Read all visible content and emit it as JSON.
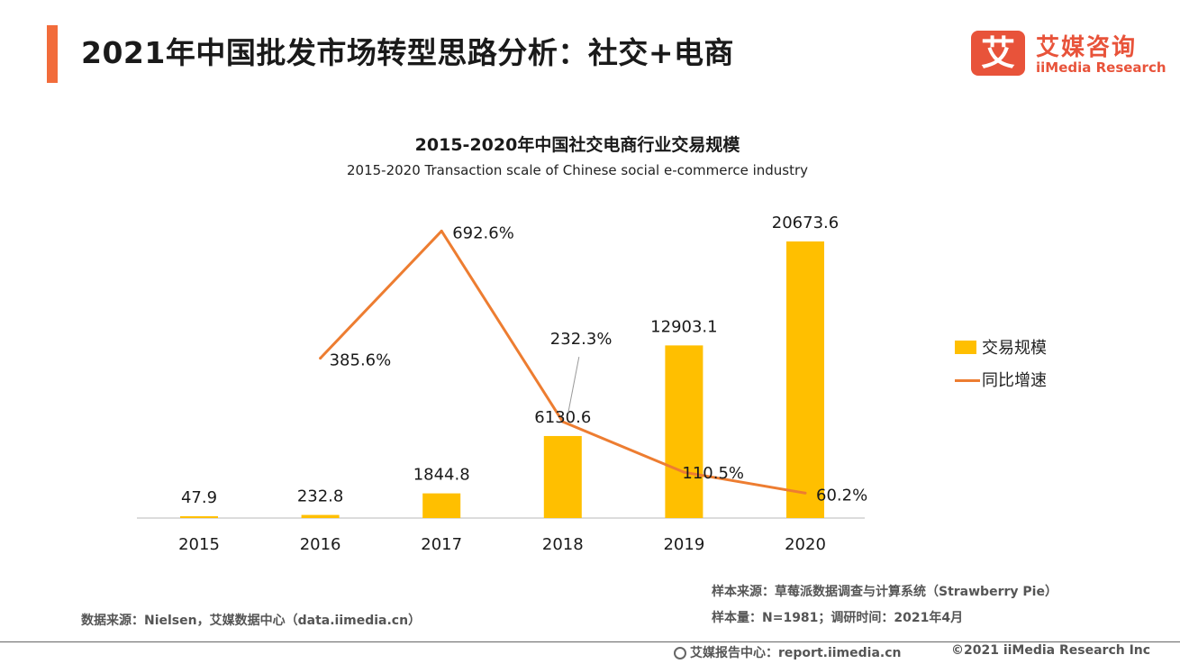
{
  "header": {
    "title": "2021年中国批发市场转型思路分析：社交+电商",
    "accent_color": "#f26c3b"
  },
  "logo": {
    "mark": "艾",
    "name_cn": "艾媒咨询",
    "name_en": "iiMedia Research",
    "color": "#e8533a"
  },
  "chart_data": {
    "type": "bar",
    "title": "2015-2020年中国社交电商行业交易规模",
    "subtitle": "2015-2020 Transaction scale  of Chinese social e-commerce industry",
    "categories": [
      "2015",
      "2016",
      "2017",
      "2018",
      "2019",
      "2020"
    ],
    "series": [
      {
        "name": "交易规模",
        "type": "bar",
        "color": "#ffbf00",
        "values": [
          47.9,
          232.8,
          1844.8,
          6130.6,
          12903.1,
          20673.6
        ],
        "labels": [
          "47.9",
          "232.8",
          "1844.8",
          "6130.6",
          "12903.1",
          "20673.6"
        ]
      },
      {
        "name": "同比增速",
        "type": "line",
        "color": "#ed7d31",
        "values": [
          null,
          385.6,
          692.6,
          232.3,
          110.5,
          60.2
        ],
        "labels": [
          "",
          "385.6%",
          "692.6%",
          "232.3%",
          "110.5%",
          "60.2%"
        ]
      }
    ],
    "bar_ylim": [
      0,
      20673.6
    ],
    "line_ylim": [
      0,
      700
    ],
    "xlabel": "",
    "ylabel": "",
    "grid": false,
    "legend_position": "right"
  },
  "sources": {
    "sample_source": "样本来源：草莓派数据调查与计算系统（Strawberry Pie）",
    "sample_size": "样本量：N=1981；调研时间：2021年4月",
    "data_source": "数据来源：Nielsen，艾媒数据中心（data.iimedia.cn）"
  },
  "footer": {
    "report_center": "艾媒报告中心：report.iimedia.cn",
    "copyright": "©2021  iiMedia Research  Inc"
  }
}
